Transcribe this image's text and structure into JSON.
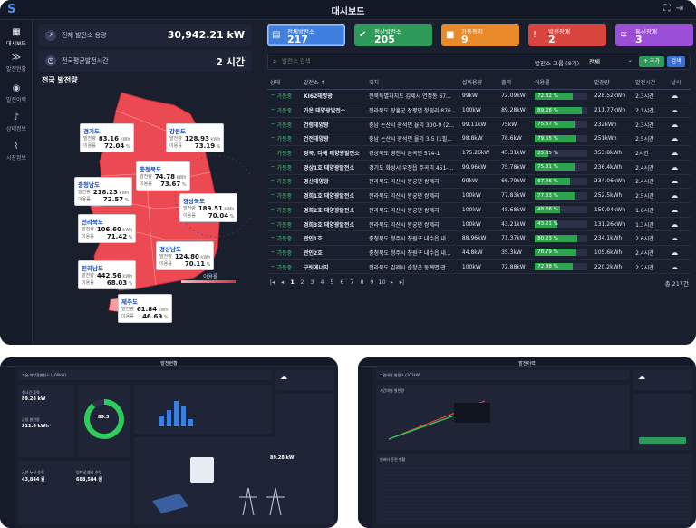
{
  "app": {
    "title": "대시보드"
  },
  "sidebar": {
    "items": [
      {
        "label": "대시보드",
        "icon": "dashboard-icon"
      },
      {
        "label": "발전현황",
        "icon": "chevrons-icon"
      },
      {
        "label": "발전이력",
        "icon": "pin-icon"
      },
      {
        "label": "상태정보",
        "icon": "bell-icon"
      },
      {
        "label": "시장정보",
        "icon": "chart-icon"
      }
    ]
  },
  "summary": {
    "total_output_label": "전체 발전소 용량",
    "total_output_value": "30,942.21 kW",
    "avg_time_label": "전국평균발전시간",
    "avg_time_value": "2 시간"
  },
  "map": {
    "title": "전국 발전량",
    "legend_label": "이용률",
    "regions": [
      {
        "name": "경기도",
        "gen_label": "발전량",
        "gen": "83.16",
        "gen_unit": "kWh",
        "util_label": "이용률",
        "util": "72.04",
        "util_unit": "%"
      },
      {
        "name": "강원도",
        "gen_label": "발전량",
        "gen": "128.93",
        "gen_unit": "kWh",
        "util_label": "이용률",
        "util": "73.19",
        "util_unit": "%"
      },
      {
        "name": "충청북도",
        "gen_label": "발전량",
        "gen": "74.78",
        "gen_unit": "kWh",
        "util_label": "이용률",
        "util": "73.67",
        "util_unit": "%"
      },
      {
        "name": "충청남도",
        "gen_label": "발전량",
        "gen": "218.23",
        "gen_unit": "kWh",
        "util_label": "이용률",
        "util": "72.57",
        "util_unit": "%"
      },
      {
        "name": "경상북도",
        "gen_label": "발전량",
        "gen": "189.51",
        "gen_unit": "kWh",
        "util_label": "이용률",
        "util": "70.04",
        "util_unit": "%"
      },
      {
        "name": "전라북도",
        "gen_label": "발전량",
        "gen": "106.60",
        "gen_unit": "kWh",
        "util_label": "이용률",
        "util": "71.42",
        "util_unit": "%"
      },
      {
        "name": "경상남도",
        "gen_label": "발전량",
        "gen": "124.80",
        "gen_unit": "kWh",
        "util_label": "이용률",
        "util": "70.11",
        "util_unit": "%"
      },
      {
        "name": "전라남도",
        "gen_label": "발전량",
        "gen": "442.56",
        "gen_unit": "kWh",
        "util_label": "이용률",
        "util": "68.03",
        "util_unit": "%"
      },
      {
        "name": "제주도",
        "gen_label": "발전량",
        "gen": "61.84",
        "gen_unit": "kWh",
        "util_label": "이용률",
        "util": "46.69",
        "util_unit": "%"
      }
    ]
  },
  "status_cards": [
    {
      "label": "전체발전소",
      "value": "217",
      "color": "#3f7fe0",
      "icon": "building-icon"
    },
    {
      "label": "정상발전소",
      "value": "205",
      "color": "#2e9a5a",
      "icon": "check-icon"
    },
    {
      "label": "가동정지",
      "value": "9",
      "color": "#e88a2a",
      "icon": "stop-icon"
    },
    {
      "label": "발전장애",
      "value": "2",
      "color": "#d9443f",
      "icon": "warning-icon"
    },
    {
      "label": "통신장애",
      "value": "3",
      "color": "#9b4fd6",
      "icon": "wifi-icon"
    }
  ],
  "search": {
    "placeholder": "발전소 검색"
  },
  "filter": {
    "group_label": "발전소 그룹 (8개)",
    "group_value": "전체",
    "add_label": "+ 추가",
    "apply_label": "검색"
  },
  "table": {
    "headers": [
      "상태",
      "발전소 ↑",
      "위치",
      "설비용량",
      "출력",
      "이용률",
      "발전량",
      "발전시간",
      "날씨"
    ],
    "rows": [
      {
        "status": "가동중",
        "name": "KI62태양광",
        "loc": "전북특별자치도 김제시 연정동 67...",
        "cap": "99kW",
        "out": "72.09kW",
        "util": "72.82 %",
        "util_pct": 72.82,
        "gen": "228.52kWh",
        "time": "2.3시간"
      },
      {
        "status": "가동중",
        "name": "가온 태양광발전소",
        "loc": "전라북도 장흥군 장평면 청림리 876",
        "cap": "100kW",
        "out": "89.28kW",
        "util": "89.28 %",
        "util_pct": 89.28,
        "gen": "211.77kWh",
        "time": "2.1시간"
      },
      {
        "status": "가동중",
        "name": "건령태양광",
        "loc": "충남 논산시 광석면 율리 300-9 (2...",
        "cap": "99.11kW",
        "out": "75kW",
        "util": "75.67 %",
        "util_pct": 75.67,
        "gen": "232kWh",
        "time": "2.3시간"
      },
      {
        "status": "가동중",
        "name": "건전태양광",
        "loc": "충남 논산시 광석면 율리 3-5 (1필...",
        "cap": "98.8kW",
        "out": "78.6kW",
        "util": "79.55 %",
        "util_pct": 79.55,
        "gen": "251kWh",
        "time": "2.5시간"
      },
      {
        "status": "가동중",
        "name": "경북, 다해 태양광발전소",
        "loc": "경상북도 영천시 금곡면 574-1",
        "cap": "175.26kW",
        "out": "45.31kW",
        "util": "25.85 %",
        "util_pct": 25.85,
        "gen": "353.8kWh",
        "time": "2시간"
      },
      {
        "status": "가동중",
        "name": "경상1호 태양광발전소",
        "loc": "경기도 화성시 우정읍 주곡리 451-...",
        "cap": "99.96kW",
        "out": "75.78kW",
        "util": "75.81 %",
        "util_pct": 75.81,
        "gen": "236.4kWh",
        "time": "2.4시간"
      },
      {
        "status": "가동중",
        "name": "경산태양광",
        "loc": "전라북도 익산시 왕궁면 쌍제리",
        "cap": "99kW",
        "out": "66.79kW",
        "util": "67.46 %",
        "util_pct": 67.46,
        "gen": "234.06kWh",
        "time": "2.4시간"
      },
      {
        "status": "가동중",
        "name": "경희1호 태양광발전소",
        "loc": "전라북도 익산시 왕궁면 쌍제리",
        "cap": "100kW",
        "out": "77.83kW",
        "util": "77.83 %",
        "util_pct": 77.83,
        "gen": "252.5kWh",
        "time": "2.5시간"
      },
      {
        "status": "가동중",
        "name": "경희2호 태양광발전소",
        "loc": "전라북도 익산시 왕궁면 쌍제리",
        "cap": "100kW",
        "out": "48.68kW",
        "util": "48.68 %",
        "util_pct": 48.68,
        "gen": "159.94kWh",
        "time": "1.6시간"
      },
      {
        "status": "가동중",
        "name": "경희3호 태양광발전소",
        "loc": "전라북도 익산시 왕궁면 쌍제리",
        "cap": "100kW",
        "out": "43.21kW",
        "util": "43.21 %",
        "util_pct": 43.21,
        "gen": "131.26kWh",
        "time": "1.3시간"
      },
      {
        "status": "가동중",
        "name": "관인1호",
        "loc": "충청북도 청주시 청원구 내수읍 내...",
        "cap": "88.96kW",
        "out": "71.37kW",
        "util": "80.23 %",
        "util_pct": 80.23,
        "gen": "234.1kWh",
        "time": "2.6시간"
      },
      {
        "status": "가동중",
        "name": "관인2호",
        "loc": "충청북도 청주시 청원구 내수읍 내...",
        "cap": "44.8kW",
        "out": "35.3kW",
        "util": "78.79 %",
        "util_pct": 78.79,
        "gen": "105.6kWh",
        "time": "2.4시간"
      },
      {
        "status": "가동중",
        "name": "구릿에너지",
        "loc": "전라북도 김제시 순창군 동계면 관...",
        "cap": "100kW",
        "out": "72.88kW",
        "util": "72.88 %",
        "util_pct": 72.88,
        "gen": "220.2kWh",
        "time": "2.2시간"
      }
    ]
  },
  "pagination": {
    "pages": [
      "1",
      "2",
      "3",
      "4",
      "5",
      "6",
      "7",
      "8",
      "9",
      "10"
    ],
    "current": "1",
    "total": "총 217건"
  },
  "bottom_left": {
    "title": "발전현황",
    "plant": "가온 태양광발전소 (100kW)",
    "donut_value": "89.3",
    "donut_unit": "%",
    "realtime_label": "실시간 출력",
    "realtime_value": "89.28 kW",
    "today_label": "금일 발전량",
    "today_value": "211.8 kWh",
    "year_label": "금년 누적 수익",
    "year_value": "43,844 원",
    "month_label": "이번달 예상 수익",
    "month_value": "688,584 원"
  },
  "bottom_right": {
    "title": "발전이력",
    "plant": "그린태양 발전소 (101kW)",
    "chart_label": "시간대별 발전량",
    "table_label": "인버터 운전 현황"
  }
}
